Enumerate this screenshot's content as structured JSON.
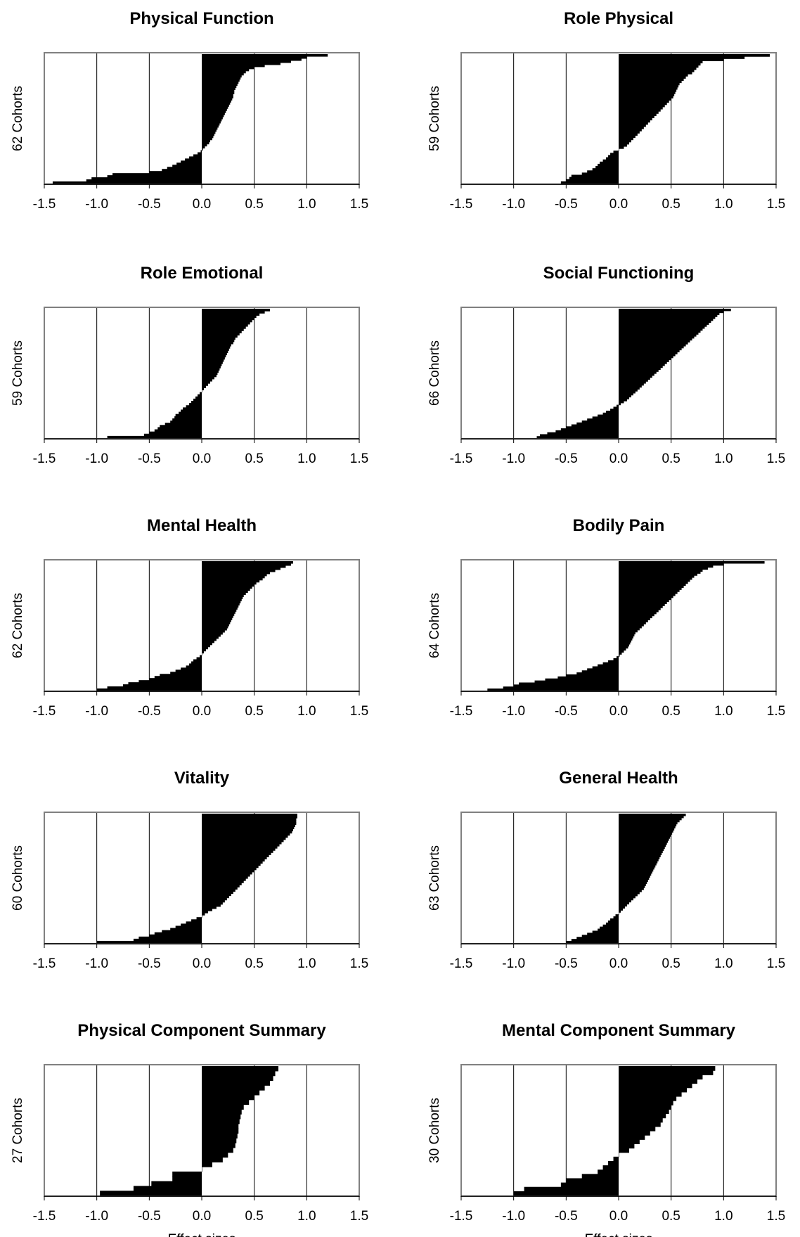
{
  "chart_data": [
    {
      "type": "bar",
      "orientation": "horizontal",
      "sorted": true,
      "title": "Physical Function",
      "ylabel": "62 Cohorts",
      "xlabel": "",
      "xlim": [
        -1.5,
        1.5
      ],
      "xticks": [
        "-1.5",
        "-1.0",
        "-0.5",
        "0.0",
        "0.5",
        "1.0",
        "1.5"
      ],
      "grid": true,
      "values": [
        -1.42,
        -1.1,
        -1.05,
        -0.9,
        -0.85,
        -0.5,
        -0.38,
        -0.33,
        -0.28,
        -0.24,
        -0.2,
        -0.16,
        -0.12,
        -0.08,
        -0.04,
        -0.01,
        0.01,
        0.03,
        0.05,
        0.07,
        0.08,
        0.1,
        0.11,
        0.12,
        0.13,
        0.14,
        0.15,
        0.16,
        0.17,
        0.18,
        0.19,
        0.2,
        0.21,
        0.22,
        0.23,
        0.24,
        0.25,
        0.26,
        0.27,
        0.28,
        0.29,
        0.3,
        0.3,
        0.31,
        0.31,
        0.32,
        0.33,
        0.34,
        0.35,
        0.36,
        0.37,
        0.38,
        0.4,
        0.42,
        0.45,
        0.5,
        0.6,
        0.75,
        0.85,
        0.95,
        1.0,
        1.2
      ]
    },
    {
      "type": "bar",
      "orientation": "horizontal",
      "sorted": true,
      "title": "Role Physical",
      "ylabel": "59 Cohorts",
      "xlabel": "",
      "xlim": [
        -1.5,
        1.5
      ],
      "xticks": [
        "-1.5",
        "-1.0",
        "-0.5",
        "0.0",
        "0.5",
        "1.0",
        "1.5"
      ],
      "grid": true,
      "values": [
        -0.55,
        -0.5,
        -0.47,
        -0.45,
        -0.35,
        -0.3,
        -0.25,
        -0.22,
        -0.2,
        -0.18,
        -0.15,
        -0.12,
        -0.1,
        -0.08,
        -0.05,
        0.0,
        0.05,
        0.08,
        0.1,
        0.12,
        0.14,
        0.16,
        0.18,
        0.2,
        0.22,
        0.24,
        0.26,
        0.28,
        0.3,
        0.32,
        0.34,
        0.36,
        0.38,
        0.4,
        0.42,
        0.44,
        0.46,
        0.48,
        0.5,
        0.52,
        0.53,
        0.54,
        0.55,
        0.56,
        0.57,
        0.58,
        0.6,
        0.62,
        0.64,
        0.66,
        0.7,
        0.72,
        0.74,
        0.76,
        0.78,
        0.8,
        1.0,
        1.2,
        1.44
      ]
    },
    {
      "type": "bar",
      "orientation": "horizontal",
      "sorted": true,
      "title": "Role Emotional",
      "ylabel": "59 Cohorts",
      "xlabel": "",
      "xlim": [
        -1.5,
        1.5
      ],
      "xticks": [
        "-1.5",
        "-1.0",
        "-0.5",
        "0.0",
        "0.5",
        "1.0",
        "1.5"
      ],
      "grid": true,
      "values": [
        -0.9,
        -0.55,
        -0.5,
        -0.45,
        -0.42,
        -0.4,
        -0.35,
        -0.3,
        -0.28,
        -0.26,
        -0.25,
        -0.22,
        -0.2,
        -0.18,
        -0.15,
        -0.12,
        -0.1,
        -0.08,
        -0.06,
        -0.04,
        -0.02,
        0.0,
        0.02,
        0.04,
        0.06,
        0.08,
        0.1,
        0.12,
        0.14,
        0.15,
        0.16,
        0.17,
        0.18,
        0.19,
        0.2,
        0.21,
        0.22,
        0.23,
        0.24,
        0.25,
        0.26,
        0.27,
        0.28,
        0.3,
        0.31,
        0.32,
        0.34,
        0.36,
        0.38,
        0.4,
        0.42,
        0.44,
        0.46,
        0.48,
        0.5,
        0.52,
        0.55,
        0.6,
        0.65
      ]
    },
    {
      "type": "bar",
      "orientation": "horizontal",
      "sorted": true,
      "title": "Social Functioning",
      "ylabel": "66 Cohorts",
      "xlabel": "",
      "xlim": [
        -1.5,
        1.5
      ],
      "xticks": [
        "-1.5",
        "-1.0",
        "-0.5",
        "0.0",
        "0.5",
        "1.0",
        "1.5"
      ],
      "grid": true,
      "values": [
        -0.78,
        -0.75,
        -0.68,
        -0.6,
        -0.55,
        -0.5,
        -0.45,
        -0.4,
        -0.35,
        -0.3,
        -0.25,
        -0.2,
        -0.15,
        -0.12,
        -0.08,
        -0.05,
        -0.02,
        0.02,
        0.05,
        0.08,
        0.1,
        0.12,
        0.14,
        0.16,
        0.18,
        0.2,
        0.22,
        0.24,
        0.26,
        0.28,
        0.3,
        0.32,
        0.34,
        0.36,
        0.38,
        0.4,
        0.42,
        0.44,
        0.46,
        0.48,
        0.5,
        0.52,
        0.54,
        0.56,
        0.58,
        0.6,
        0.62,
        0.64,
        0.66,
        0.68,
        0.7,
        0.72,
        0.74,
        0.76,
        0.78,
        0.8,
        0.82,
        0.84,
        0.86,
        0.88,
        0.9,
        0.92,
        0.94,
        0.96,
        1.0,
        1.07
      ]
    },
    {
      "type": "bar",
      "orientation": "horizontal",
      "sorted": true,
      "title": "Mental Health",
      "ylabel": "62 Cohorts",
      "xlabel": "",
      "xlim": [
        -1.5,
        1.5
      ],
      "xticks": [
        "-1.5",
        "-1.0",
        "-0.5",
        "0.0",
        "0.5",
        "1.0",
        "1.5"
      ],
      "grid": true,
      "values": [
        -1.0,
        -0.9,
        -0.75,
        -0.7,
        -0.6,
        -0.5,
        -0.45,
        -0.4,
        -0.3,
        -0.25,
        -0.2,
        -0.15,
        -0.12,
        -0.1,
        -0.08,
        -0.05,
        -0.02,
        0.0,
        0.02,
        0.04,
        0.06,
        0.08,
        0.1,
        0.12,
        0.14,
        0.16,
        0.18,
        0.2,
        0.22,
        0.24,
        0.25,
        0.26,
        0.27,
        0.28,
        0.29,
        0.3,
        0.31,
        0.32,
        0.33,
        0.34,
        0.35,
        0.36,
        0.37,
        0.38,
        0.39,
        0.4,
        0.42,
        0.44,
        0.46,
        0.48,
        0.5,
        0.52,
        0.55,
        0.58,
        0.6,
        0.62,
        0.65,
        0.7,
        0.75,
        0.8,
        0.85,
        0.87
      ]
    },
    {
      "type": "bar",
      "orientation": "horizontal",
      "sorted": true,
      "title": "Bodily Pain",
      "ylabel": "64 Cohorts",
      "xlabel": "",
      "xlim": [
        -1.5,
        1.5
      ],
      "xticks": [
        "-1.5",
        "-1.0",
        "-0.5",
        "0.0",
        "0.5",
        "1.0",
        "1.5"
      ],
      "grid": true,
      "values": [
        -1.25,
        -1.1,
        -1.0,
        -0.95,
        -0.8,
        -0.7,
        -0.58,
        -0.5,
        -0.4,
        -0.35,
        -0.3,
        -0.25,
        -0.2,
        -0.15,
        -0.1,
        -0.05,
        -0.02,
        0.01,
        0.03,
        0.05,
        0.07,
        0.09,
        0.1,
        0.11,
        0.12,
        0.13,
        0.14,
        0.15,
        0.16,
        0.18,
        0.2,
        0.22,
        0.24,
        0.26,
        0.28,
        0.3,
        0.32,
        0.34,
        0.36,
        0.38,
        0.4,
        0.42,
        0.44,
        0.46,
        0.48,
        0.5,
        0.52,
        0.54,
        0.56,
        0.58,
        0.6,
        0.62,
        0.64,
        0.66,
        0.68,
        0.7,
        0.72,
        0.75,
        0.78,
        0.8,
        0.85,
        0.9,
        1.0,
        1.39
      ]
    },
    {
      "type": "bar",
      "orientation": "horizontal",
      "sorted": true,
      "title": "Vitality",
      "ylabel": "60 Cohorts",
      "xlabel": "",
      "xlim": [
        -1.5,
        1.5
      ],
      "xticks": [
        "-1.5",
        "-1.0",
        "-0.5",
        "0.0",
        "0.5",
        "1.0",
        "1.5"
      ],
      "grid": true,
      "values": [
        -1.0,
        -0.65,
        -0.6,
        -0.5,
        -0.45,
        -0.38,
        -0.3,
        -0.25,
        -0.2,
        -0.15,
        -0.1,
        -0.05,
        0.0,
        0.03,
        0.06,
        0.1,
        0.14,
        0.18,
        0.2,
        0.22,
        0.24,
        0.26,
        0.28,
        0.3,
        0.32,
        0.34,
        0.36,
        0.38,
        0.4,
        0.42,
        0.44,
        0.46,
        0.48,
        0.5,
        0.52,
        0.54,
        0.56,
        0.58,
        0.6,
        0.62,
        0.64,
        0.66,
        0.68,
        0.7,
        0.72,
        0.74,
        0.76,
        0.78,
        0.8,
        0.82,
        0.84,
        0.86,
        0.87,
        0.88,
        0.89,
        0.9,
        0.9,
        0.9,
        0.91,
        0.91
      ]
    },
    {
      "type": "bar",
      "orientation": "horizontal",
      "sorted": true,
      "title": "General Health",
      "ylabel": "63 Cohorts",
      "xlabel": "",
      "xlim": [
        -1.5,
        1.5
      ],
      "xticks": [
        "-1.5",
        "-1.0",
        "-0.5",
        "0.0",
        "0.5",
        "1.0",
        "1.5"
      ],
      "grid": true,
      "values": [
        -0.5,
        -0.45,
        -0.4,
        -0.35,
        -0.3,
        -0.25,
        -0.2,
        -0.18,
        -0.15,
        -0.12,
        -0.1,
        -0.08,
        -0.05,
        -0.03,
        0.0,
        0.02,
        0.04,
        0.06,
        0.08,
        0.1,
        0.12,
        0.14,
        0.16,
        0.18,
        0.2,
        0.22,
        0.24,
        0.25,
        0.26,
        0.27,
        0.28,
        0.29,
        0.3,
        0.31,
        0.32,
        0.33,
        0.34,
        0.35,
        0.36,
        0.37,
        0.38,
        0.39,
        0.4,
        0.41,
        0.42,
        0.43,
        0.44,
        0.45,
        0.46,
        0.47,
        0.48,
        0.49,
        0.5,
        0.51,
        0.52,
        0.53,
        0.54,
        0.55,
        0.56,
        0.58,
        0.6,
        0.62,
        0.64
      ]
    },
    {
      "type": "bar",
      "orientation": "horizontal",
      "sorted": true,
      "title": "Physical Component Summary",
      "ylabel": "27 Cohorts",
      "xlabel": "Effect sizes",
      "xlim": [
        -1.5,
        1.5
      ],
      "xticks": [
        "-1.5",
        "-1.0",
        "-0.5",
        "0.0",
        "0.5",
        "1.0",
        "1.5"
      ],
      "grid": true,
      "values": [
        -0.97,
        -0.65,
        -0.48,
        -0.28,
        -0.28,
        0.0,
        0.1,
        0.2,
        0.25,
        0.3,
        0.32,
        0.33,
        0.34,
        0.35,
        0.35,
        0.36,
        0.37,
        0.38,
        0.4,
        0.45,
        0.5,
        0.55,
        0.6,
        0.65,
        0.68,
        0.7,
        0.73
      ]
    },
    {
      "type": "bar",
      "orientation": "horizontal",
      "sorted": true,
      "title": "Mental Component Summary",
      "ylabel": "30 Cohorts",
      "xlabel": "Effect sizes",
      "xlim": [
        -1.5,
        1.5
      ],
      "xticks": [
        "-1.5",
        "-1.0",
        "-0.5",
        "0.0",
        "0.5",
        "1.0",
        "1.5"
      ],
      "grid": true,
      "values": [
        -1.0,
        -0.9,
        -0.55,
        -0.5,
        -0.35,
        -0.2,
        -0.15,
        -0.1,
        -0.05,
        0.0,
        0.1,
        0.15,
        0.2,
        0.25,
        0.3,
        0.35,
        0.4,
        0.42,
        0.45,
        0.48,
        0.5,
        0.52,
        0.55,
        0.6,
        0.65,
        0.7,
        0.75,
        0.8,
        0.9,
        0.92
      ]
    }
  ]
}
